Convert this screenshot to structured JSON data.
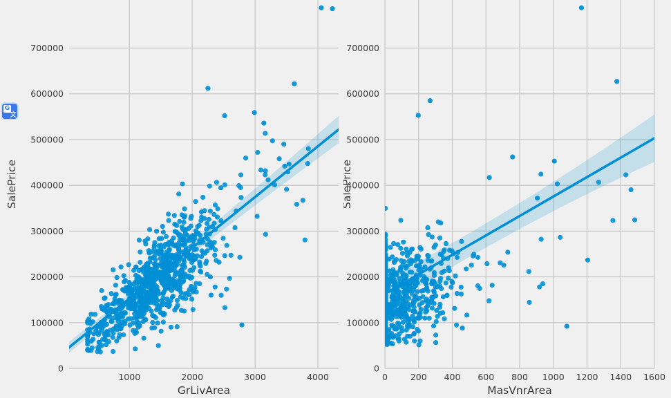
{
  "figure": {
    "background": "#F0F0F0",
    "grid_color": "#CBCBCB",
    "text_color": "#3A3A3A",
    "accent": "#008FD5"
  },
  "translate_icon": {
    "letter": "G",
    "glyph": "文",
    "color": "#3B78E7"
  },
  "chart_data": [
    {
      "type": "scatter",
      "title": "",
      "xlabel": "GrLivArea",
      "ylabel": "SalePrice",
      "xlim": [
        40,
        4330
      ],
      "ylim": [
        0,
        805000
      ],
      "xticks": [
        1000,
        2000,
        3000,
        4000
      ],
      "yticks": [
        0,
        100000,
        200000,
        300000,
        400000,
        500000,
        600000,
        700000
      ],
      "grid": true,
      "legend": "none",
      "point_color": "#008FD5",
      "point_radius": 3.6,
      "regression": {
        "x0": 40,
        "y0": 46000,
        "x1": 4330,
        "y1": 522000,
        "band": [
          12000,
          7000,
          30000
        ]
      },
      "seed": 20231,
      "clusters": [
        {
          "n": 780,
          "x": {
            "dist": "gauss",
            "mean": 1450,
            "sd": 430,
            "min": 334,
            "max": 3200
          },
          "y": {
            "base": 38000,
            "slope": 106,
            "noise_base": 26000,
            "noise_per_x": 14,
            "min": 36000,
            "max": 700000
          }
        },
        {
          "n": 40,
          "x": {
            "dist": "uniform",
            "min": 2200,
            "max": 3900
          },
          "y": {
            "base": 30000,
            "slope": 105,
            "noise_base": 80000,
            "noise_per_x": 0,
            "min": 90000,
            "max": 640000
          }
        },
        {
          "n": 60,
          "x": {
            "dist": "uniform",
            "min": 334,
            "max": 900
          },
          "y": {
            "base": 30000,
            "slope": 80,
            "noise_base": 25000,
            "noise_per_x": 0,
            "min": 34000,
            "max": 200000
          }
        }
      ],
      "outliers": [
        [
          4055,
          788000
        ],
        [
          4231,
          786000
        ],
        [
          3625,
          622000
        ],
        [
          2250,
          612000
        ],
        [
          2516,
          552000
        ],
        [
          2990,
          559000
        ],
        [
          3385,
          458000
        ],
        [
          3140,
          536000
        ],
        [
          2790,
          95000
        ],
        [
          2300,
          160000
        ]
      ]
    },
    {
      "type": "scatter",
      "title": "",
      "xlabel": "MasVnrArea",
      "ylabel": "SalePrice",
      "xlim": [
        0,
        1600
      ],
      "ylim": [
        0,
        805000
      ],
      "xticks": [
        0,
        200,
        400,
        600,
        800,
        1000,
        1200,
        1400,
        1600
      ],
      "yticks": [
        0,
        100000,
        200000,
        300000,
        400000,
        500000,
        600000,
        700000
      ],
      "grid": true,
      "legend": "none",
      "point_color": "#008FD5",
      "point_radius": 3.6,
      "regression": {
        "x0": 0,
        "y0": 163000,
        "x1": 1600,
        "y1": 503000,
        "band": [
          30000,
          16000,
          52000
        ]
      },
      "seed": 77003,
      "clusters": [
        {
          "n": 300,
          "x": {
            "dist": "const",
            "value": 3
          },
          "y": {
            "base": 150000,
            "slope": 0,
            "noise_base": 62000,
            "noise_per_x": 0,
            "min": 52000,
            "max": 466000
          }
        },
        {
          "n": 400,
          "x": {
            "dist": "halfgauss",
            "sd": 210,
            "offset": 12,
            "max": 1120
          },
          "y": {
            "base": 142000,
            "slope": 135,
            "noise_base": 58000,
            "noise_per_x": 0,
            "min": 50000,
            "max": 655000
          }
        },
        {
          "n": 16,
          "x": {
            "dist": "uniform",
            "min": 620,
            "max": 1500
          },
          "y": {
            "base": 120000,
            "slope": 180,
            "noise_base": 80000,
            "noise_per_x": 0,
            "min": 120000,
            "max": 700000
          }
        }
      ],
      "outliers": [
        [
          1167,
          788000
        ],
        [
          1377,
          627000
        ],
        [
          268,
          585000
        ],
        [
          198,
          553000
        ],
        [
          1006,
          453000
        ],
        [
          758,
          462000
        ],
        [
          620,
          417000
        ],
        [
          905,
          372000
        ],
        [
          1080,
          92000
        ],
        [
          460,
          88000
        ]
      ]
    }
  ]
}
